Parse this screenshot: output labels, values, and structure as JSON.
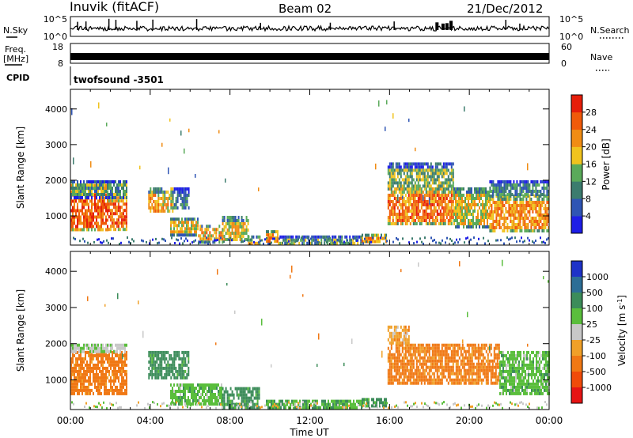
{
  "header": {
    "station": "Inuvik (fitACF)",
    "beam": "Beam 02",
    "date": "21/Dec/2012"
  },
  "strips": {
    "nsky_label": "N.Sky",
    "nsearch_label": "N.Search",
    "noise_ticks": [
      "10^5",
      "10^0"
    ],
    "freq_label_top": "Freq.",
    "freq_label_unit": "[MHz]",
    "freq_ticks": [
      "18",
      "8"
    ],
    "nave_label": "Nave",
    "nave_ticks": [
      "60",
      "0"
    ],
    "cpid_label": "CPID",
    "cpid_value": "twofsound -3501"
  },
  "axes": {
    "ylabel": "Slant Range [km]",
    "yticks": [
      "1000",
      "2000",
      "3000",
      "4000"
    ],
    "xticks": [
      "00:00",
      "04:00",
      "08:00",
      "12:00",
      "16:00",
      "20:00",
      "00:00"
    ],
    "xlabel": "Time UT"
  },
  "colorbars": {
    "power": {
      "label": "Power [dB]",
      "ticks": [
        "4",
        "8",
        "12",
        "16",
        "20",
        "24",
        "28"
      ],
      "colors": [
        "#1e1ee6",
        "#2f55b4",
        "#3c7c6e",
        "#5aaa5a",
        "#f0c31e",
        "#f08c14",
        "#f05a0a",
        "#e61e0a"
      ]
    },
    "velocity": {
      "label": "Velocity [m s",
      "label_sup": "-1",
      "label_end": "]",
      "ticks": [
        "1000",
        "500",
        "100",
        "25",
        "-25",
        "-100",
        "-500",
        "-1000"
      ],
      "colors": [
        "#1e32c8",
        "#2d6e96",
        "#3c8c5a",
        "#5abe3c",
        "#c8c8c8",
        "#f0a028",
        "#f07814",
        "#f04b0a",
        "#e61414"
      ]
    }
  },
  "chart_data": [
    {
      "type": "heatmap",
      "panel": "power",
      "x_unit": "hours UT",
      "y_unit": "slant range km",
      "xlim": [
        0,
        24
      ],
      "ylim": [
        180,
        4550
      ],
      "value_unit": "dB",
      "scale": [
        0,
        30
      ],
      "regions": [
        {
          "x": [
            0.0,
            1.9
          ],
          "y": [
            600,
            1900
          ],
          "value": 26
        },
        {
          "x": [
            1.9,
            2.8
          ],
          "y": [
            600,
            1550
          ],
          "value": 26
        },
        {
          "x": [
            0.0,
            2.8
          ],
          "y": [
            1550,
            2000
          ],
          "value": 12
        },
        {
          "x": [
            3.9,
            5.1
          ],
          "y": [
            1100,
            1800
          ],
          "value": 20
        },
        {
          "x": [
            5.1,
            5.9
          ],
          "y": [
            1200,
            1800
          ],
          "value": 10
        },
        {
          "x": [
            5.0,
            6.4
          ],
          "y": [
            500,
            950
          ],
          "value": 18
        },
        {
          "x": [
            6.4,
            7.6
          ],
          "y": [
            300,
            750
          ],
          "value": 20
        },
        {
          "x": [
            7.6,
            8.9
          ],
          "y": [
            300,
            1000
          ],
          "value": 18
        },
        {
          "x": [
            8.9,
            9.5
          ],
          "y": [
            250,
            450
          ],
          "value": 18
        },
        {
          "x": [
            9.8,
            10.4
          ],
          "y": [
            300,
            600
          ],
          "value": 22
        },
        {
          "x": [
            10.4,
            14.6
          ],
          "y": [
            200,
            450
          ],
          "value": 12
        },
        {
          "x": [
            14.6,
            15.8
          ],
          "y": [
            300,
            500
          ],
          "value": 22
        },
        {
          "x": [
            15.9,
            19.2
          ],
          "y": [
            750,
            1800
          ],
          "value": 24
        },
        {
          "x": [
            15.9,
            19.2
          ],
          "y": [
            1800,
            2500
          ],
          "value": 14
        },
        {
          "x": [
            19.2,
            21.0
          ],
          "y": [
            700,
            1800
          ],
          "value": 18
        },
        {
          "x": [
            21.0,
            24.0
          ],
          "y": [
            600,
            1600
          ],
          "value": 22
        },
        {
          "x": [
            21.0,
            24.0
          ],
          "y": [
            1600,
            2000
          ],
          "value": 10
        }
      ]
    },
    {
      "type": "heatmap",
      "panel": "velocity",
      "x_unit": "hours UT",
      "y_unit": "slant range km",
      "xlim": [
        0,
        24
      ],
      "ylim": [
        180,
        4550
      ],
      "value_unit": "m/s",
      "regions": [
        {
          "x": [
            0.0,
            2.8
          ],
          "y": [
            600,
            1800
          ],
          "value": -200
        },
        {
          "x": [
            0.0,
            2.8
          ],
          "y": [
            1800,
            2000
          ],
          "value": 10
        },
        {
          "x": [
            3.9,
            5.9
          ],
          "y": [
            1100,
            1800
          ],
          "value": 200
        },
        {
          "x": [
            5.0,
            7.6
          ],
          "y": [
            300,
            900
          ],
          "value": 60
        },
        {
          "x": [
            7.6,
            9.5
          ],
          "y": [
            250,
            800
          ],
          "value": 200
        },
        {
          "x": [
            9.8,
            14.6
          ],
          "y": [
            200,
            450
          ],
          "value": 80
        },
        {
          "x": [
            14.6,
            15.8
          ],
          "y": [
            250,
            500
          ],
          "value": 150
        },
        {
          "x": [
            15.9,
            21.5
          ],
          "y": [
            900,
            2000
          ],
          "value": -150
        },
        {
          "x": [
            21.5,
            24.0
          ],
          "y": [
            600,
            1800
          ],
          "value": 60
        },
        {
          "x": [
            15.9,
            17.0
          ],
          "y": [
            2000,
            2500
          ],
          "value": -60
        }
      ]
    }
  ]
}
